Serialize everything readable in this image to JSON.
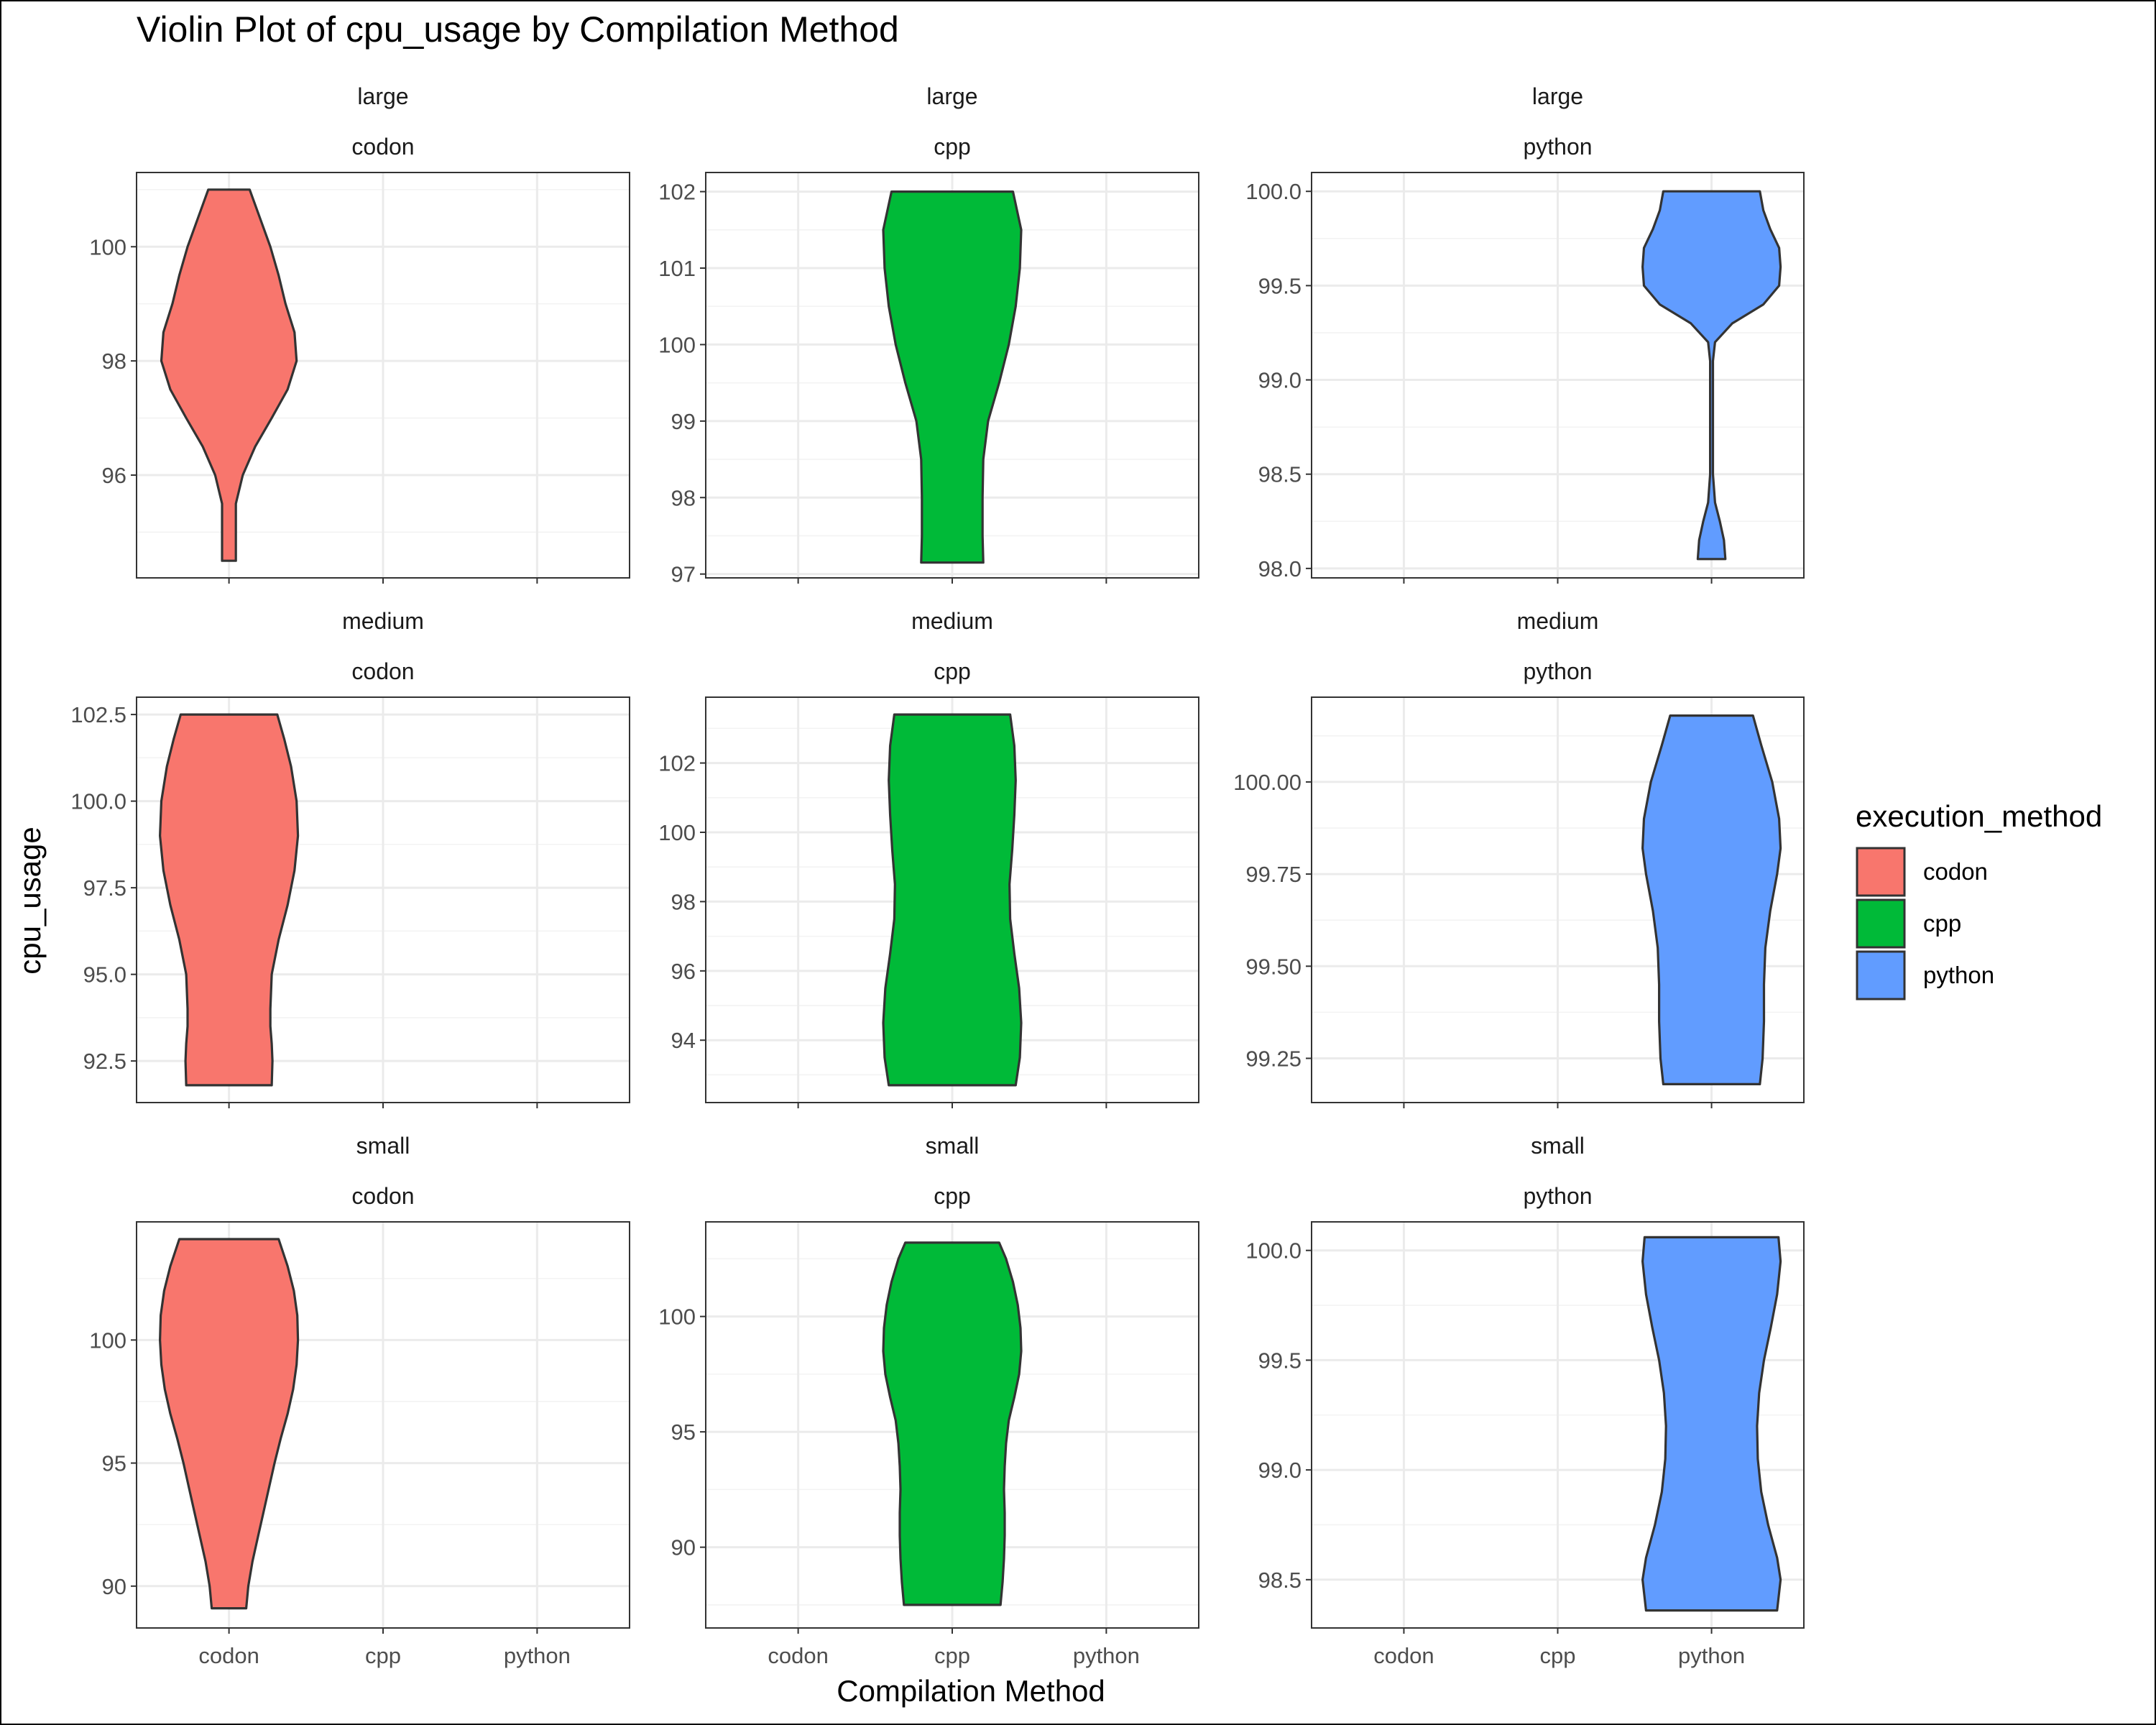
{
  "chart_data": {
    "type": "violin",
    "title": "Violin Plot of cpu_usage by Compilation Method",
    "xlabel": "Compilation Method",
    "ylabel": "cpu_usage",
    "categories": [
      "codon",
      "cpp",
      "python"
    ],
    "legend": {
      "title": "execution_method",
      "position": "right",
      "items": [
        {
          "label": "codon",
          "color": "#F8766D"
        },
        {
          "label": "cpp",
          "color": "#00BA38"
        },
        {
          "label": "python",
          "color": "#619CFF"
        }
      ]
    },
    "grid": true,
    "panels": [
      {
        "row_label": "large",
        "col_label": "codon",
        "category": "codon",
        "color": "#F8766D",
        "ylim": [
          94.2,
          101.3
        ],
        "yticks": [
          96,
          98,
          100
        ],
        "ytick_labels": [
          "96",
          "98",
          "100"
        ],
        "min": 94.5,
        "max": 101.0,
        "profile": [
          [
            94.5,
            0.1
          ],
          [
            95.0,
            0.1
          ],
          [
            95.5,
            0.1
          ],
          [
            96.0,
            0.2
          ],
          [
            96.5,
            0.38
          ],
          [
            97.0,
            0.62
          ],
          [
            97.5,
            0.85
          ],
          [
            98.0,
            0.98
          ],
          [
            98.5,
            0.95
          ],
          [
            99.0,
            0.82
          ],
          [
            99.5,
            0.72
          ],
          [
            100.0,
            0.6
          ],
          [
            100.5,
            0.45
          ],
          [
            101.0,
            0.3
          ]
        ]
      },
      {
        "row_label": "large",
        "col_label": "cpp",
        "category": "cpp",
        "color": "#00BA38",
        "ylim": [
          96.95,
          102.25
        ],
        "yticks": [
          97,
          98,
          99,
          100,
          101,
          102
        ],
        "ytick_labels": [
          "97",
          "98",
          "99",
          "100",
          "101",
          "102"
        ],
        "min": 97.15,
        "max": 102.0,
        "profile": [
          [
            97.15,
            0.45
          ],
          [
            97.5,
            0.44
          ],
          [
            98.0,
            0.44
          ],
          [
            98.5,
            0.45
          ],
          [
            99.0,
            0.52
          ],
          [
            99.5,
            0.68
          ],
          [
            100.0,
            0.82
          ],
          [
            100.5,
            0.92
          ],
          [
            101.0,
            0.98
          ],
          [
            101.5,
            1.0
          ],
          [
            102.0,
            0.88
          ]
        ]
      },
      {
        "row_label": "large",
        "col_label": "python",
        "category": "python",
        "color": "#619CFF",
        "ylim": [
          97.95,
          100.1
        ],
        "yticks": [
          98.0,
          98.5,
          99.0,
          99.5,
          100.0
        ],
        "ytick_labels": [
          "98.0",
          "98.5",
          "99.0",
          "99.5",
          "100.0"
        ],
        "min": 98.05,
        "max": 100.0,
        "profile": [
          [
            98.05,
            0.2
          ],
          [
            98.15,
            0.18
          ],
          [
            98.25,
            0.12
          ],
          [
            98.35,
            0.05
          ],
          [
            98.5,
            0.02
          ],
          [
            98.8,
            0.02
          ],
          [
            99.1,
            0.02
          ],
          [
            99.2,
            0.05
          ],
          [
            99.3,
            0.3
          ],
          [
            99.4,
            0.75
          ],
          [
            99.5,
            0.98
          ],
          [
            99.6,
            1.0
          ],
          [
            99.7,
            0.98
          ],
          [
            99.8,
            0.85
          ],
          [
            99.9,
            0.75
          ],
          [
            100.0,
            0.7
          ]
        ]
      },
      {
        "row_label": "medium",
        "col_label": "codon",
        "category": "codon",
        "color": "#F8766D",
        "ylim": [
          91.3,
          103.0
        ],
        "yticks": [
          92.5,
          95.0,
          97.5,
          100.0,
          102.5
        ],
        "ytick_labels": [
          "92.5",
          "95.0",
          "97.5",
          "100.0",
          "102.5"
        ],
        "min": 91.8,
        "max": 102.5,
        "profile": [
          [
            91.8,
            0.62
          ],
          [
            92.5,
            0.63
          ],
          [
            93.0,
            0.62
          ],
          [
            93.5,
            0.6
          ],
          [
            94.0,
            0.6
          ],
          [
            95.0,
            0.62
          ],
          [
            96.0,
            0.72
          ],
          [
            97.0,
            0.85
          ],
          [
            98.0,
            0.95
          ],
          [
            99.0,
            1.0
          ],
          [
            100.0,
            0.98
          ],
          [
            101.0,
            0.9
          ],
          [
            101.8,
            0.8
          ],
          [
            102.5,
            0.7
          ]
        ]
      },
      {
        "row_label": "medium",
        "col_label": "cpp",
        "category": "cpp",
        "color": "#00BA38",
        "ylim": [
          92.2,
          103.9
        ],
        "yticks": [
          94,
          96,
          98,
          100,
          102
        ],
        "ytick_labels": [
          "94",
          "96",
          "98",
          "100",
          "102"
        ],
        "min": 92.7,
        "max": 103.4,
        "profile": [
          [
            92.7,
            0.92
          ],
          [
            93.5,
            0.98
          ],
          [
            94.5,
            1.0
          ],
          [
            95.5,
            0.97
          ],
          [
            96.5,
            0.9
          ],
          [
            97.5,
            0.84
          ],
          [
            98.5,
            0.83
          ],
          [
            99.5,
            0.87
          ],
          [
            100.5,
            0.9
          ],
          [
            101.5,
            0.92
          ],
          [
            102.5,
            0.9
          ],
          [
            103.4,
            0.84
          ]
        ]
      },
      {
        "row_label": "medium",
        "col_label": "python",
        "category": "python",
        "color": "#619CFF",
        "ylim": [
          99.13,
          100.23
        ],
        "yticks": [
          99.25,
          99.5,
          99.75,
          100.0
        ],
        "ytick_labels": [
          "99.25",
          "99.50",
          "99.75",
          "100.00"
        ],
        "min": 99.18,
        "max": 100.18,
        "profile": [
          [
            99.18,
            0.7
          ],
          [
            99.25,
            0.74
          ],
          [
            99.35,
            0.76
          ],
          [
            99.45,
            0.76
          ],
          [
            99.55,
            0.78
          ],
          [
            99.65,
            0.85
          ],
          [
            99.75,
            0.95
          ],
          [
            99.82,
            1.0
          ],
          [
            99.9,
            0.98
          ],
          [
            100.0,
            0.88
          ],
          [
            100.1,
            0.72
          ],
          [
            100.18,
            0.6
          ]
        ]
      },
      {
        "row_label": "small",
        "col_label": "codon",
        "category": "codon",
        "color": "#F8766D",
        "ylim": [
          88.3,
          104.8
        ],
        "yticks": [
          90,
          95,
          100
        ],
        "ytick_labels": [
          "90",
          "95",
          "100"
        ],
        "min": 89.1,
        "max": 104.1,
        "profile": [
          [
            89.1,
            0.25
          ],
          [
            90.0,
            0.28
          ],
          [
            91.0,
            0.34
          ],
          [
            92.0,
            0.42
          ],
          [
            93.0,
            0.5
          ],
          [
            94.0,
            0.58
          ],
          [
            95.0,
            0.66
          ],
          [
            96.0,
            0.75
          ],
          [
            97.0,
            0.85
          ],
          [
            98.0,
            0.93
          ],
          [
            99.0,
            0.98
          ],
          [
            100.0,
            1.0
          ],
          [
            101.0,
            0.99
          ],
          [
            102.0,
            0.94
          ],
          [
            103.0,
            0.85
          ],
          [
            104.1,
            0.72
          ]
        ]
      },
      {
        "row_label": "small",
        "col_label": "cpp",
        "category": "cpp",
        "color": "#00BA38",
        "ylim": [
          86.5,
          104.1
        ],
        "yticks": [
          90,
          95,
          100
        ],
        "ytick_labels": [
          "90",
          "95",
          "100"
        ],
        "min": 87.5,
        "max": 103.2,
        "profile": [
          [
            87.5,
            0.7
          ],
          [
            88.5,
            0.73
          ],
          [
            89.5,
            0.75
          ],
          [
            90.5,
            0.76
          ],
          [
            91.5,
            0.76
          ],
          [
            92.5,
            0.75
          ],
          [
            93.5,
            0.76
          ],
          [
            94.5,
            0.78
          ],
          [
            95.5,
            0.82
          ],
          [
            96.5,
            0.9
          ],
          [
            97.5,
            0.97
          ],
          [
            98.5,
            1.0
          ],
          [
            99.5,
            0.99
          ],
          [
            100.5,
            0.95
          ],
          [
            101.5,
            0.88
          ],
          [
            102.5,
            0.78
          ],
          [
            103.2,
            0.68
          ]
        ]
      },
      {
        "row_label": "small",
        "col_label": "python",
        "category": "python",
        "color": "#619CFF",
        "ylim": [
          98.28,
          100.13
        ],
        "yticks": [
          98.5,
          99.0,
          99.5,
          100.0
        ],
        "ytick_labels": [
          "98.5",
          "99.0",
          "99.5",
          "100.0"
        ],
        "min": 98.36,
        "max": 100.06,
        "profile": [
          [
            98.36,
            0.95
          ],
          [
            98.5,
            1.0
          ],
          [
            98.6,
            0.95
          ],
          [
            98.75,
            0.82
          ],
          [
            98.9,
            0.72
          ],
          [
            99.05,
            0.67
          ],
          [
            99.2,
            0.66
          ],
          [
            99.35,
            0.69
          ],
          [
            99.5,
            0.76
          ],
          [
            99.65,
            0.86
          ],
          [
            99.8,
            0.95
          ],
          [
            99.95,
            1.0
          ],
          [
            100.06,
            0.97
          ]
        ]
      }
    ]
  }
}
